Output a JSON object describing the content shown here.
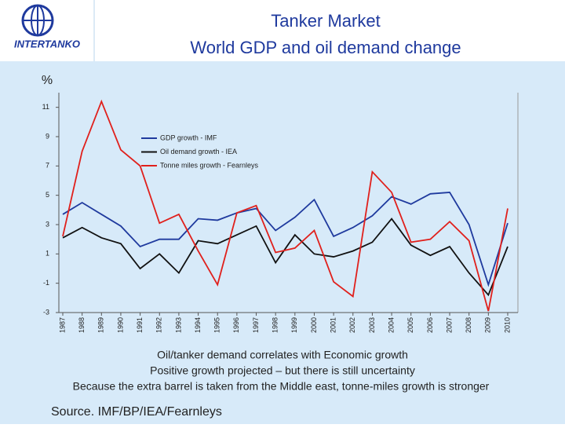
{
  "logo_text": "INTERTANKO",
  "chart_data": {
    "type": "line",
    "title": "Tanker Market",
    "subtitle": "World GDP and oil demand change",
    "y_label": "%",
    "categories": [
      "1987",
      "1988",
      "1989",
      "1990",
      "1991",
      "1992",
      "1993",
      "1994",
      "1995",
      "1996",
      "1997",
      "1998",
      "1999",
      "2000",
      "2001",
      "2002",
      "2003",
      "2004",
      "2005",
      "2006",
      "2007",
      "2008",
      "2009",
      "2010"
    ],
    "series": [
      {
        "name": "GDP growth - IMF",
        "color": "#1f3a9e",
        "values": [
          3.7,
          4.5,
          3.7,
          2.9,
          1.5,
          2.0,
          2.0,
          3.4,
          3.3,
          3.8,
          4.1,
          2.6,
          3.5,
          4.7,
          2.2,
          2.8,
          3.6,
          4.9,
          4.4,
          5.1,
          5.2,
          3.0,
          -1.1,
          3.1
        ]
      },
      {
        "name": "Oil demand growth - IEA",
        "color": "#111111",
        "values": [
          2.1,
          2.8,
          2.1,
          1.7,
          0.0,
          1.0,
          -0.3,
          1.9,
          1.7,
          2.3,
          2.9,
          0.4,
          2.3,
          1.0,
          0.8,
          1.2,
          1.8,
          3.4,
          1.6,
          0.9,
          1.5,
          -0.3,
          -1.8,
          1.5
        ]
      },
      {
        "name": "Tonne miles growth - Fearnleys",
        "color": "#e0201c",
        "values": [
          2.2,
          8.0,
          11.4,
          8.1,
          7.0,
          3.1,
          3.7,
          1.2,
          -1.1,
          3.8,
          4.3,
          1.1,
          1.4,
          2.6,
          -0.9,
          -1.9,
          6.6,
          5.2,
          1.8,
          2.0,
          3.2,
          1.9,
          -2.9,
          4.1
        ]
      }
    ],
    "ylim": [
      -3,
      12
    ],
    "yticks": [
      11,
      9,
      7,
      5,
      3,
      1,
      -1,
      -3
    ],
    "grid": false,
    "annotations": [
      "Oil/tanker demand correlates with Economic growth",
      "Positive growth projected – but there is still uncertainty",
      "Because the extra barrel is taken from the Middle east, tonne-miles growth is stronger"
    ],
    "source": "Source. IMF/BP/IEA/Fearnleys"
  }
}
